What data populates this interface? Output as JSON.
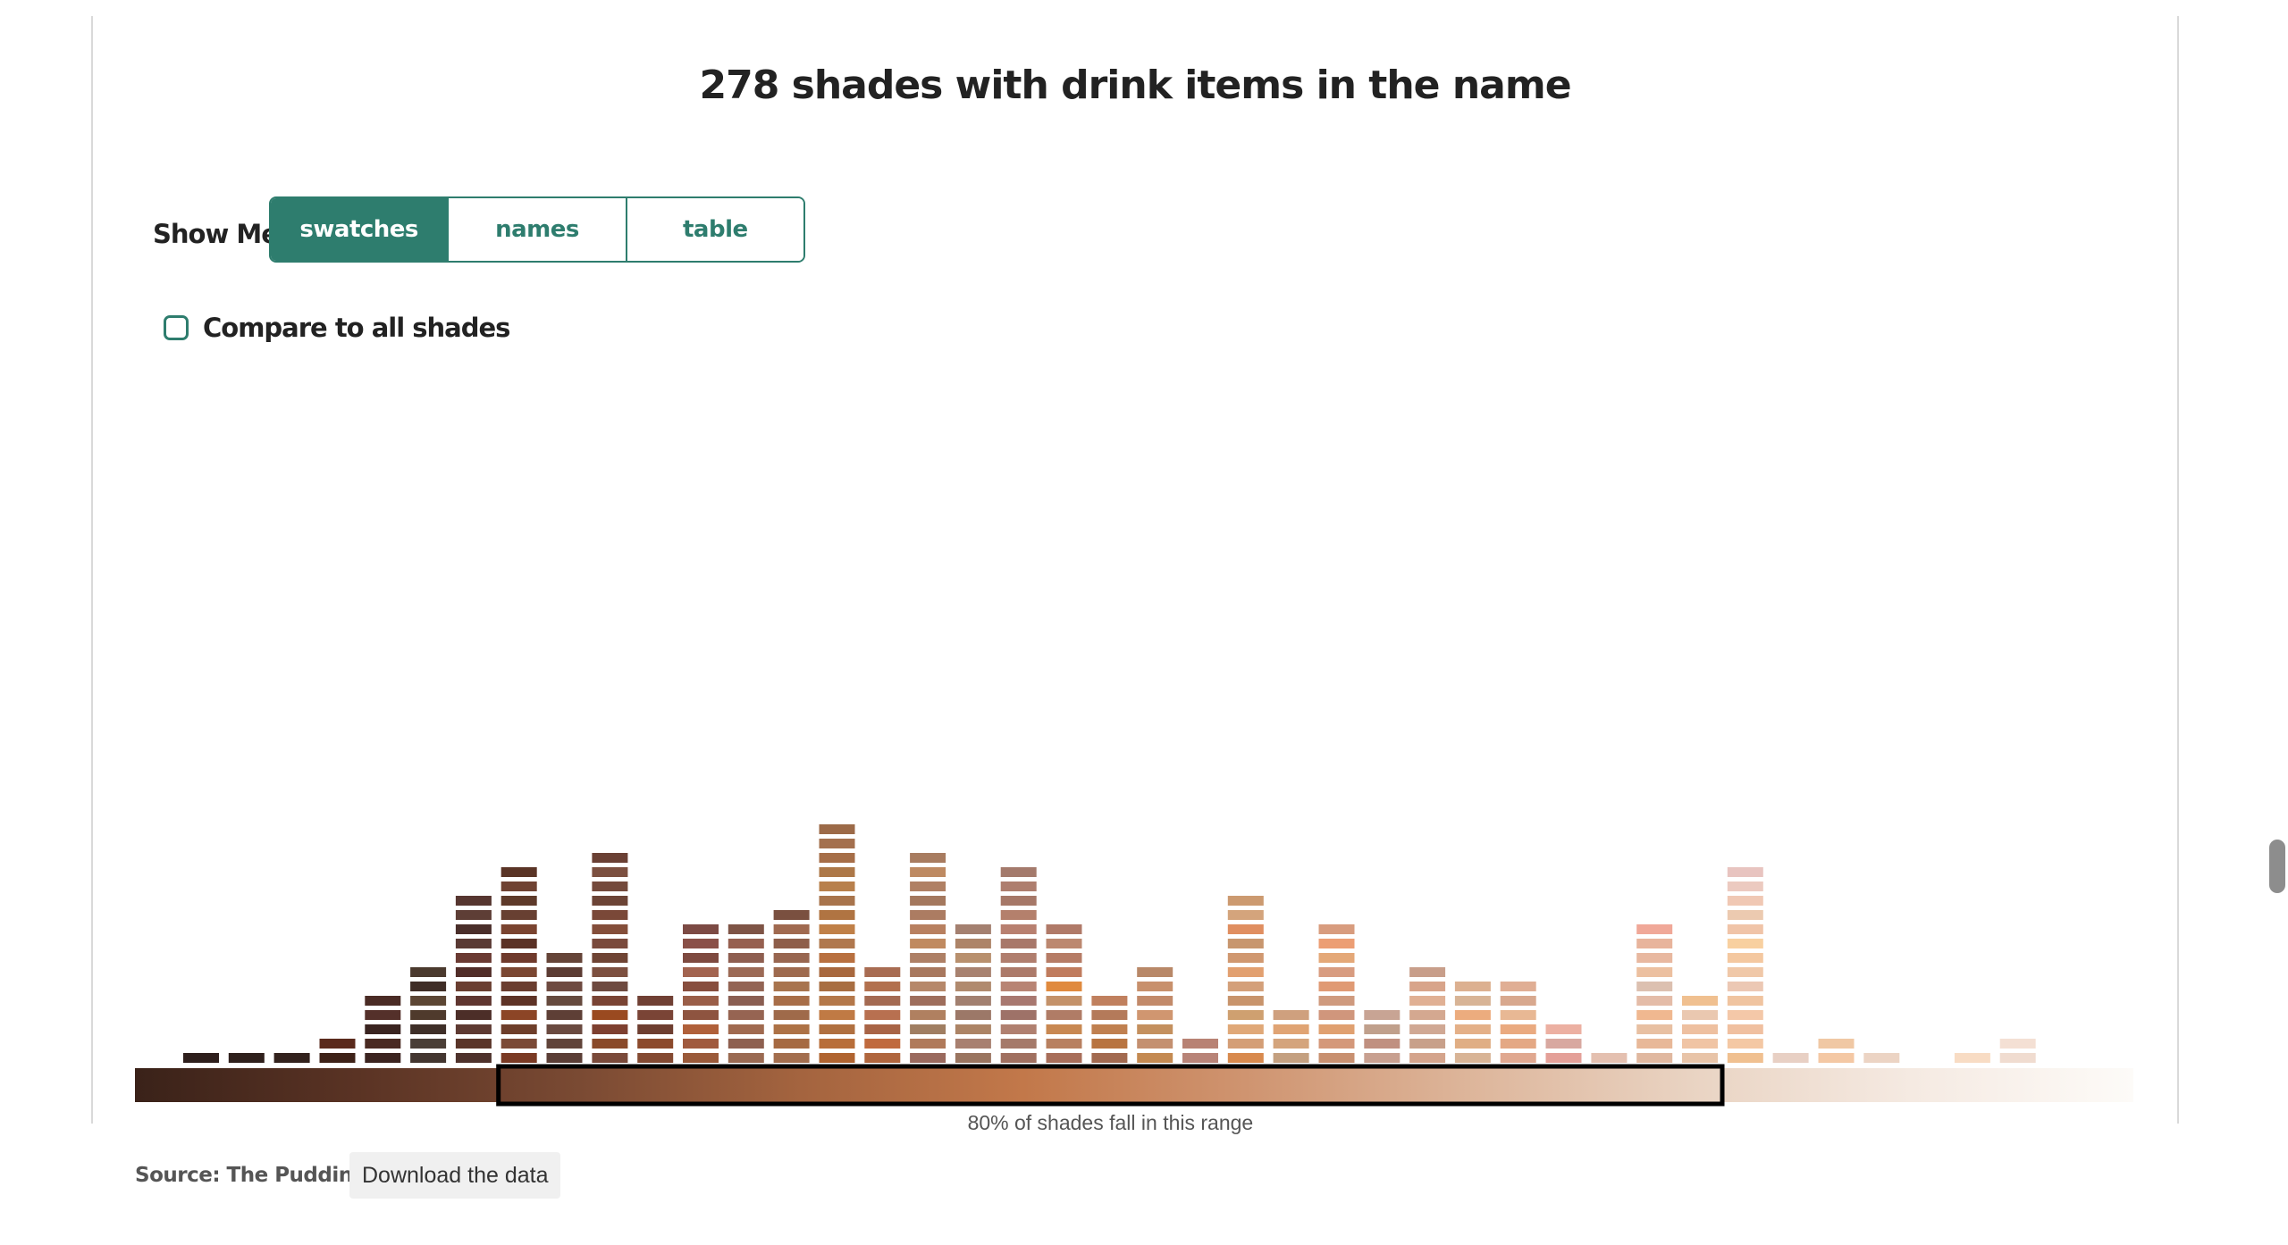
{
  "page": {
    "title": "278 shades with drink items in the name"
  },
  "controls": {
    "show_me_label": "Show Me",
    "toggle_options": [
      {
        "label": "swatches",
        "active": true
      },
      {
        "label": "names",
        "active": false
      },
      {
        "label": "table",
        "active": false
      }
    ],
    "compare_label": "Compare to all shades",
    "compare_checked": false
  },
  "chart_data": {
    "type": "bar",
    "title": "278 shades with drink items in the name",
    "xlabel": "",
    "ylabel": "",
    "y_unit": "count of shades",
    "range_annotation": "80% of shades fall in this range",
    "gradient_colors": [
      "#3a2219",
      "#5a3324",
      "#7a4a33",
      "#a4643f",
      "#c2784a",
      "#cf9470",
      "#ddb59a",
      "#e9d3c2",
      "#f5eae2",
      "#fdfbf8"
    ],
    "bins": [
      {
        "count": 0,
        "colors": []
      },
      {
        "count": 1,
        "colors": [
          "#2e1f1c"
        ]
      },
      {
        "count": 1,
        "colors": [
          "#2f201c"
        ]
      },
      {
        "count": 1,
        "colors": [
          "#33221d"
        ]
      },
      {
        "count": 2,
        "colors": [
          "#3e2218",
          "#5a2a1c"
        ]
      },
      {
        "count": 5,
        "colors": [
          "#3c2420",
          "#4a2a22",
          "#3a2420",
          "#54302a",
          "#4a2b25"
        ]
      },
      {
        "count": 7,
        "colors": [
          "#433630",
          "#4a3e36",
          "#3e2f28",
          "#4f3a2c",
          "#5c4634",
          "#3f2d26",
          "#4b3a2e"
        ]
      },
      {
        "count": 12,
        "colors": [
          "#4e322c",
          "#5a3529",
          "#5e3a32",
          "#4c2e28",
          "#5f3630",
          "#6a3e30",
          "#512d28",
          "#6a3a32",
          "#5a3a34",
          "#4a2e2a",
          "#5e3e36",
          "#563630"
        ]
      },
      {
        "count": 14,
        "colors": [
          "#7a3a24",
          "#7b4a36",
          "#6e3e2a",
          "#8c4526",
          "#5e3326",
          "#6a3d2f",
          "#7b4732",
          "#6f3a2c",
          "#5b3226",
          "#7a4430",
          "#684032",
          "#5e3a2a",
          "#6f4232",
          "#5a3426"
        ]
      },
      {
        "count": 8,
        "colors": [
          "#5b3e36",
          "#61443a",
          "#6a4a40",
          "#5e3f36",
          "#664a3e",
          "#6e4a40",
          "#5c3c34",
          "#654438"
        ]
      },
      {
        "count": 15,
        "colors": [
          "#7a4a3a",
          "#8a4a2a",
          "#7e4030",
          "#9a4a20",
          "#7a4434",
          "#6e4a40",
          "#7d5040",
          "#6f4434",
          "#7a4a3c",
          "#844e3a",
          "#7a4838",
          "#6c4436",
          "#744a3c",
          "#7c5040",
          "#6a4034"
        ]
      },
      {
        "count": 5,
        "colors": [
          "#844a32",
          "#8c4a2c",
          "#6e3e30",
          "#7a4436",
          "#704034"
        ]
      },
      {
        "count": 10,
        "colors": [
          "#9a5a3a",
          "#a05a3e",
          "#b0603a",
          "#8e5440",
          "#9a5e48",
          "#874e3e",
          "#a36450",
          "#7e4a40",
          "#8a5048",
          "#7c4a44"
        ]
      },
      {
        "count": 10,
        "colors": [
          "#9a6a52",
          "#8e6050",
          "#a06a50",
          "#966452",
          "#8a5e52",
          "#936454",
          "#9c6a56",
          "#8e5e50",
          "#966050",
          "#7e5446"
        ]
      },
      {
        "count": 11,
        "colors": [
          "#a36e4e",
          "#a66a42",
          "#ad7246",
          "#9f6a4a",
          "#a86e48",
          "#a8744e",
          "#9e6a4e",
          "#986650",
          "#8e5e4a",
          "#a06a50",
          "#7a5040"
        ]
      },
      {
        "count": 17,
        "colors": [
          "#b06430",
          "#b86e3a",
          "#b07040",
          "#c07a44",
          "#b4784a",
          "#a86e42",
          "#a8683e",
          "#b87040",
          "#b0784e",
          "#c08048",
          "#b07442",
          "#a8744c",
          "#b8804c",
          "#ad7848",
          "#a66e48",
          "#a4704e",
          "#9c6a48"
        ]
      },
      {
        "count": 7,
        "colors": [
          "#b0663e",
          "#c06a3e",
          "#a86446",
          "#b87050",
          "#a46a52",
          "#b2704e",
          "#a86c52"
        ]
      },
      {
        "count": 15,
        "colors": [
          "#9a6a5e",
          "#b07a5a",
          "#a07e62",
          "#b08060",
          "#9e6e5c",
          "#b6886a",
          "#a8785e",
          "#ae8066",
          "#c08a60",
          "#b88060",
          "#ac7c62",
          "#a4785e",
          "#b08064",
          "#be8a62",
          "#a87c60"
        ]
      },
      {
        "count": 10,
        "colors": [
          "#9a7560",
          "#a88070",
          "#ac8466",
          "#9c7868",
          "#a28070",
          "#b08a6e",
          "#a88270",
          "#b8906e",
          "#ad8468",
          "#a48070"
        ]
      },
      {
        "count": 14,
        "colors": [
          "#a07060",
          "#a57a6a",
          "#b08070",
          "#9e7268",
          "#a87870",
          "#b88474",
          "#ac7a6a",
          "#b07e6e",
          "#a8786a",
          "#b88070",
          "#b4806c",
          "#a67868",
          "#ae7e6e",
          "#a47a6c"
        ]
      },
      {
        "count": 10,
        "colors": [
          "#a86e5a",
          "#b88060",
          "#c88852",
          "#b07c66",
          "#c4926a",
          "#e08a3e",
          "#c07c5e",
          "#b67c66",
          "#bc8870",
          "#b07a68"
        ]
      },
      {
        "count": 5,
        "colors": [
          "#a26a50",
          "#b87440",
          "#c08050",
          "#b47a5a",
          "#c0805e"
        ]
      },
      {
        "count": 7,
        "colors": [
          "#c48a52",
          "#c49070",
          "#c4905e",
          "#d09670",
          "#c28a6a",
          "#c8906c",
          "#b88868"
        ]
      },
      {
        "count": 2,
        "colors": [
          "#b88478",
          "#b88274"
        ]
      },
      {
        "count": 12,
        "colors": [
          "#d88a4e",
          "#d49e76",
          "#e0a878",
          "#cfa070",
          "#c8946c",
          "#d4a07a",
          "#e2a070",
          "#d09870",
          "#c8966e",
          "#e08e60",
          "#d4a47c",
          "#cc9a70"
        ]
      },
      {
        "count": 4,
        "colors": [
          "#c4a080",
          "#d4a47c",
          "#e0a474",
          "#cfa07e"
        ]
      },
      {
        "count": 10,
        "colors": [
          "#c89070",
          "#d4987a",
          "#e0a070",
          "#d0967c",
          "#cf9a7e",
          "#e09a74",
          "#d89c80",
          "#e4a878",
          "#ec9e74",
          "#d89c7e"
        ]
      },
      {
        "count": 4,
        "colors": [
          "#c8a090",
          "#c09080",
          "#c0a08c",
          "#c8a494"
        ]
      },
      {
        "count": 7,
        "colors": [
          "#d4a48c",
          "#c8a08a",
          "#d0a894",
          "#d4a890",
          "#e0b094",
          "#d8a48a",
          "#c89e8a"
        ]
      },
      {
        "count": 6,
        "colors": [
          "#d8b496",
          "#e0ae84",
          "#e4b088",
          "#ecac7e",
          "#d8b496",
          "#dcb090"
        ]
      },
      {
        "count": 6,
        "colors": [
          "#e0a890",
          "#e4a884",
          "#eaaa80",
          "#e8b894",
          "#d8a88e",
          "#e0ae94"
        ]
      },
      {
        "count": 3,
        "colors": [
          "#e4a098",
          "#d8a8a0",
          "#ecb0a2"
        ]
      },
      {
        "count": 1,
        "colors": [
          "#e4c0b0"
        ]
      },
      {
        "count": 10,
        "colors": [
          "#e0b8a0",
          "#e8b898",
          "#e8c0a2",
          "#f0b890",
          "#e4bca8",
          "#dcc0b0",
          "#ecc0a0",
          "#e8b8a0",
          "#e8b49c",
          "#f0a898"
        ]
      },
      {
        "count": 5,
        "colors": [
          "#e8c4a8",
          "#f0c4a4",
          "#eec0a0",
          "#eac8b0",
          "#f0c090"
        ]
      },
      {
        "count": 14,
        "colors": [
          "#f0c090",
          "#f4c8a4",
          "#f0c0a0",
          "#f4c8a8",
          "#f0c4a0",
          "#ecc8b4",
          "#f0c8a8",
          "#f4c8a0",
          "#f8d0a0",
          "#f0c4a8",
          "#eccab0",
          "#f0c8b4",
          "#eccac0",
          "#e8c4c0"
        ]
      },
      {
        "count": 1,
        "colors": [
          "#e8d0c4"
        ]
      },
      {
        "count": 2,
        "colors": [
          "#f4c8a4",
          "#f0c8a4"
        ]
      },
      {
        "count": 1,
        "colors": [
          "#ecd4c4"
        ]
      },
      {
        "count": 0,
        "colors": []
      },
      {
        "count": 1,
        "colors": [
          "#f8dcc4"
        ]
      },
      {
        "count": 2,
        "colors": [
          "#f0dcd0",
          "#f4e0d4"
        ]
      },
      {
        "count": 0,
        "colors": []
      },
      {
        "count": 0,
        "colors": []
      }
    ],
    "range_start_bin": 8,
    "range_end_bin": 34
  },
  "footer": {
    "source_label": "Source: The Pudding",
    "download_label": "Download the data"
  },
  "colors": {
    "accent": "#2e7d6e"
  }
}
